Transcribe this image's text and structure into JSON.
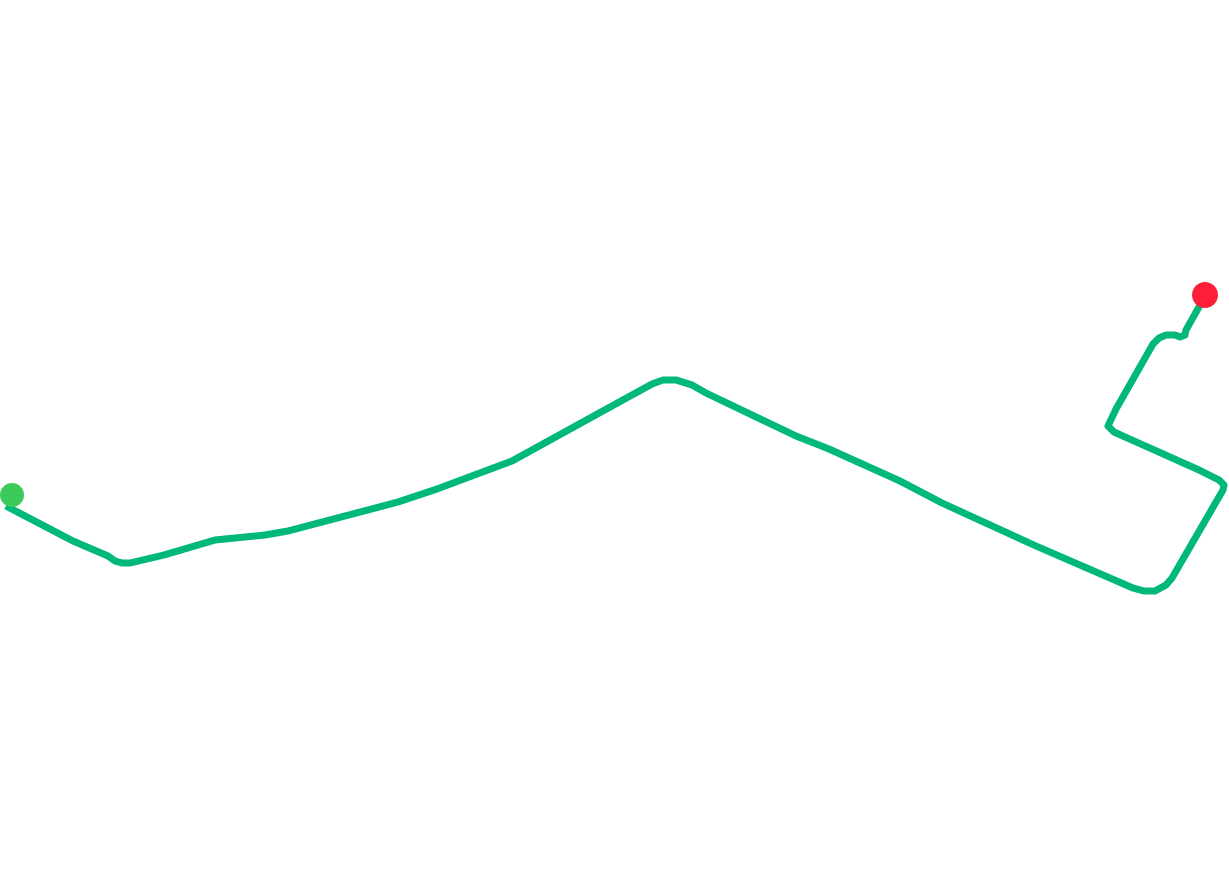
{
  "map": {
    "background": "#ffffff",
    "route": {
      "color": "#00b877"
    },
    "markers": {
      "start": {
        "icon": "start-point-icon",
        "color": "#3ccb5a"
      },
      "end": {
        "icon": "end-point-icon",
        "color": "#ff1e3a"
      }
    }
  }
}
